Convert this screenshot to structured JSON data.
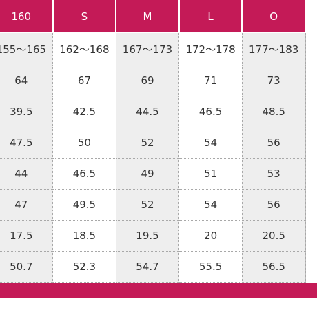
{
  "size_table": {
    "headers": [
      "160",
      "S",
      "M",
      "L",
      "O"
    ],
    "rows": [
      [
        "155～165",
        "162～168",
        "167～173",
        "172～178",
        "177～183"
      ],
      [
        "64",
        "67",
        "69",
        "71",
        "73"
      ],
      [
        "39.5",
        "42.5",
        "44.5",
        "46.5",
        "48.5"
      ],
      [
        "47.5",
        "50",
        "52",
        "54",
        "56"
      ],
      [
        "44",
        "46.5",
        "49",
        "51",
        "53"
      ],
      [
        "47",
        "49.5",
        "52",
        "54",
        "56"
      ],
      [
        "17.5",
        "18.5",
        "19.5",
        "20",
        "20.5"
      ],
      [
        "50.7",
        "52.3",
        "54.7",
        "55.5",
        "56.5"
      ]
    ]
  },
  "colors": {
    "header_background": "#c41a57",
    "header_text": "#ffffff",
    "shaded_cell": "#eeeeee",
    "plain_cell": "#ffffff"
  }
}
